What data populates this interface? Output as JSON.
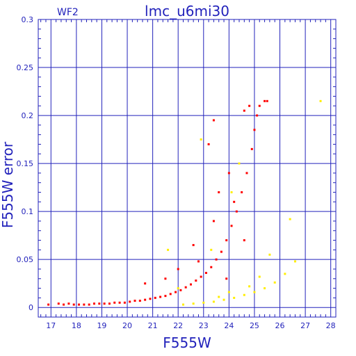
{
  "chart_data": {
    "type": "scatter",
    "title": "lmc_u6mi30",
    "subtitle": "WF2",
    "xlabel": "F555W",
    "ylabel": "F555W error",
    "xlim": [
      16.5,
      28.2
    ],
    "ylim": [
      -0.01,
      0.3
    ],
    "x_ticks": [
      "17",
      "18",
      "19",
      "20",
      "21",
      "22",
      "23",
      "24",
      "25",
      "26",
      "27",
      "28"
    ],
    "y_ticks": [
      "0",
      "0.05",
      "0.1",
      "0.15",
      "0.2",
      "0.25",
      "0.3"
    ],
    "grid": true,
    "series": [
      {
        "color": "#ff0000",
        "points": [
          [
            16.9,
            0.003
          ],
          [
            17.3,
            0.004
          ],
          [
            17.5,
            0.003
          ],
          [
            17.7,
            0.004
          ],
          [
            17.9,
            0.003
          ],
          [
            18.1,
            0.003
          ],
          [
            18.3,
            0.003
          ],
          [
            18.5,
            0.003
          ],
          [
            18.7,
            0.004
          ],
          [
            18.9,
            0.004
          ],
          [
            19.1,
            0.004
          ],
          [
            19.3,
            0.004
          ],
          [
            19.5,
            0.005
          ],
          [
            19.7,
            0.005
          ],
          [
            19.9,
            0.005
          ],
          [
            20.1,
            0.006
          ],
          [
            20.3,
            0.007
          ],
          [
            20.5,
            0.007
          ],
          [
            20.7,
            0.008
          ],
          [
            20.9,
            0.009
          ],
          [
            21.1,
            0.01
          ],
          [
            21.3,
            0.011
          ],
          [
            21.5,
            0.012
          ],
          [
            21.7,
            0.014
          ],
          [
            21.9,
            0.016
          ],
          [
            22.1,
            0.018
          ],
          [
            22.3,
            0.021
          ],
          [
            22.5,
            0.024
          ],
          [
            22.7,
            0.028
          ],
          [
            22.9,
            0.032
          ],
          [
            23.1,
            0.036
          ],
          [
            23.3,
            0.042
          ],
          [
            23.5,
            0.05
          ],
          [
            23.7,
            0.058
          ],
          [
            23.9,
            0.07
          ],
          [
            24.1,
            0.085
          ],
          [
            24.3,
            0.1
          ],
          [
            24.5,
            0.12
          ],
          [
            24.7,
            0.14
          ],
          [
            24.9,
            0.165
          ],
          [
            25.0,
            0.185
          ],
          [
            25.1,
            0.2
          ],
          [
            25.2,
            0.21
          ],
          [
            25.4,
            0.215
          ],
          [
            25.5,
            0.215
          ],
          [
            24.8,
            0.21
          ],
          [
            24.6,
            0.205
          ],
          [
            23.4,
            0.195
          ],
          [
            23.2,
            0.17
          ],
          [
            23.6,
            0.12
          ],
          [
            22.6,
            0.065
          ],
          [
            23.9,
            0.03
          ],
          [
            24.2,
            0.11
          ],
          [
            24.6,
            0.07
          ],
          [
            22.0,
            0.04
          ],
          [
            21.5,
            0.03
          ],
          [
            20.7,
            0.025
          ],
          [
            22.8,
            0.048
          ],
          [
            23.4,
            0.09
          ],
          [
            24.0,
            0.14
          ]
        ]
      },
      {
        "color": "#ffee00",
        "points": [
          [
            22.2,
            0.003
          ],
          [
            22.6,
            0.004
          ],
          [
            23.0,
            0.005
          ],
          [
            23.4,
            0.006
          ],
          [
            23.8,
            0.008
          ],
          [
            24.2,
            0.01
          ],
          [
            24.6,
            0.013
          ],
          [
            25.0,
            0.016
          ],
          [
            25.4,
            0.02
          ],
          [
            25.8,
            0.026
          ],
          [
            26.2,
            0.035
          ],
          [
            26.6,
            0.048
          ],
          [
            27.6,
            0.215
          ],
          [
            26.4,
            0.092
          ],
          [
            25.6,
            0.055
          ],
          [
            24.4,
            0.15
          ],
          [
            24.1,
            0.12
          ],
          [
            22.9,
            0.175
          ],
          [
            23.3,
            0.06
          ],
          [
            21.6,
            0.06
          ],
          [
            22.0,
            0.02
          ],
          [
            24.8,
            0.022
          ],
          [
            25.2,
            0.032
          ],
          [
            24.0,
            0.016
          ],
          [
            23.6,
            0.011
          ]
        ]
      }
    ]
  }
}
